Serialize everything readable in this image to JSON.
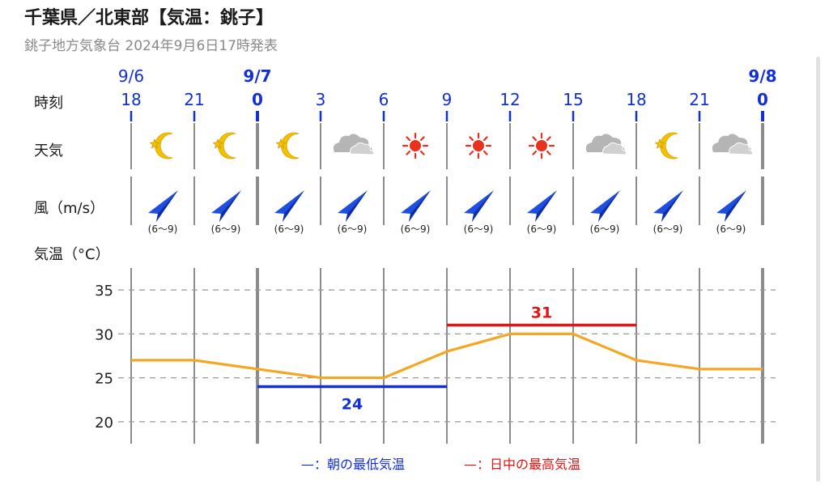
{
  "header": {
    "title": "千葉県／北東部【気温：銚子】",
    "subtitle": "銚子地方気象台 2024年9月6日17時発表"
  },
  "rows": {
    "time_label": "時刻",
    "weather_label": "天気",
    "wind_label": "風（m/s）",
    "temp_label": "気温（°C）"
  },
  "dates": [
    {
      "label": "9/6",
      "index": 0,
      "bold": false
    },
    {
      "label": "9/7",
      "index": 2,
      "bold": true
    },
    {
      "label": "9/8",
      "index": 10,
      "bold": true
    }
  ],
  "hours": [
    "18",
    "21",
    "0",
    "3",
    "6",
    "9",
    "12",
    "15",
    "18",
    "21",
    "0"
  ],
  "weather_icons": [
    "moon-star",
    "moon-star",
    "moon-star",
    "cloud",
    "sun",
    "sun",
    "sun",
    "cloud",
    "moon-star",
    "cloud"
  ],
  "wind": [
    {
      "range": "(6〜9)",
      "direction": "southwest"
    },
    {
      "range": "(6〜9)",
      "direction": "southwest"
    },
    {
      "range": "(6〜9)",
      "direction": "southwest"
    },
    {
      "range": "(6〜9)",
      "direction": "southwest"
    },
    {
      "range": "(6〜9)",
      "direction": "southwest"
    },
    {
      "range": "(6〜9)",
      "direction": "southwest"
    },
    {
      "range": "(6〜9)",
      "direction": "southwest"
    },
    {
      "range": "(6〜9)",
      "direction": "southwest"
    },
    {
      "range": "(6〜9)",
      "direction": "southwest"
    },
    {
      "range": "(6〜9)",
      "direction": "southwest"
    }
  ],
  "chart_data": {
    "type": "line",
    "x": [
      "9/6 18",
      "9/6 21",
      "9/7 0",
      "9/7 3",
      "9/7 6",
      "9/7 9",
      "9/7 12",
      "9/7 15",
      "9/7 18",
      "9/7 21",
      "9/8 0"
    ],
    "series": [
      {
        "values": [
          27,
          27,
          26,
          25,
          25,
          28,
          30,
          30,
          27,
          26,
          26
        ]
      }
    ],
    "yticks": [
      "35",
      "30",
      "25",
      "20"
    ],
    "ylim": [
      17.5,
      37.5
    ],
    "grid": true,
    "min_temp": {
      "value": 24,
      "label": "24",
      "from": "9/7 0",
      "to": "9/7 9"
    },
    "max_temp": {
      "value": 31,
      "label": "31",
      "from": "9/7 9",
      "to": "9/7 18"
    }
  },
  "legend": {
    "min_text": "—：朝の最低気温",
    "max_text": "—：日中の最高気温"
  },
  "colors": {
    "line": "#f5a623",
    "min": "#1330d6",
    "max": "#e01515",
    "date": "#1330d6",
    "sun": "#e8321e",
    "moon": "#f2c200",
    "cloud": "#b5b5b5",
    "arrow": "#1f4ee0",
    "grid": "#999999"
  }
}
